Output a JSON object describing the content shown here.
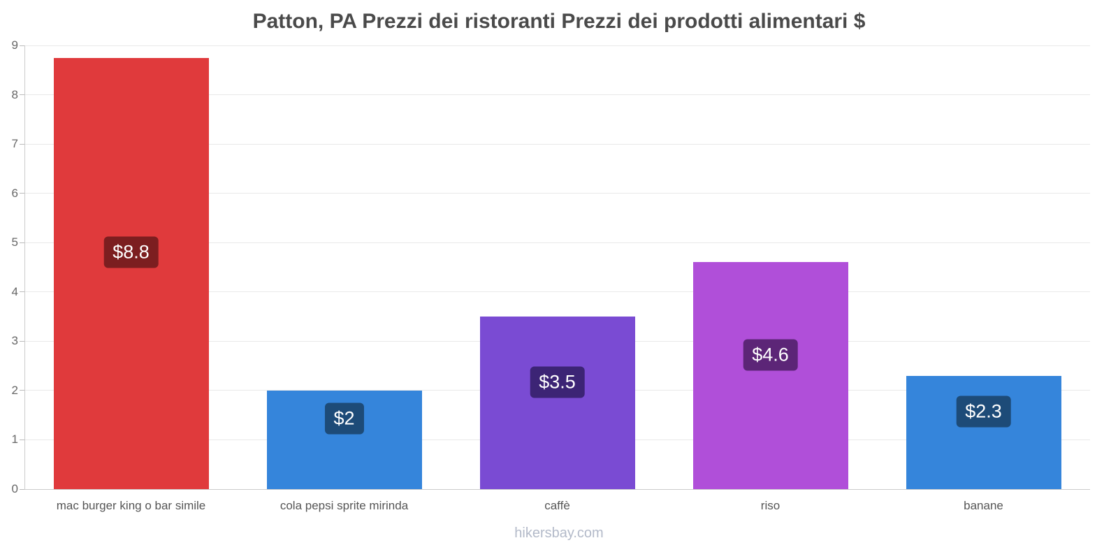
{
  "title": "Patton, PA Prezzi dei ristoranti Prezzi dei prodotti alimentari $",
  "footer": "hikersbay.com",
  "chart_data": {
    "type": "bar",
    "title": "Patton, PA Prezzi dei ristoranti Prezzi dei prodotti alimentari $",
    "categories": [
      "mac burger king o bar simile",
      "cola pepsi sprite mirinda",
      "caffè",
      "riso",
      "banane"
    ],
    "values": [
      8.75,
      2,
      3.5,
      4.6,
      2.3
    ],
    "data_labels": [
      "$8.8",
      "$2",
      "$3.5",
      "$4.6",
      "$2.3"
    ],
    "bar_colors": [
      "#e03a3c",
      "#3585db",
      "#7a4bd3",
      "#b04fd9",
      "#3585db"
    ],
    "label_bg_colors": [
      "#7c1e20",
      "#1d4b78",
      "#3c2475",
      "#5c2577",
      "#1d4b78"
    ],
    "xlabel": "",
    "ylabel": "",
    "ylim": [
      0,
      9
    ],
    "ytick_step": 1,
    "grid": true,
    "legend": false,
    "currency": "$"
  }
}
